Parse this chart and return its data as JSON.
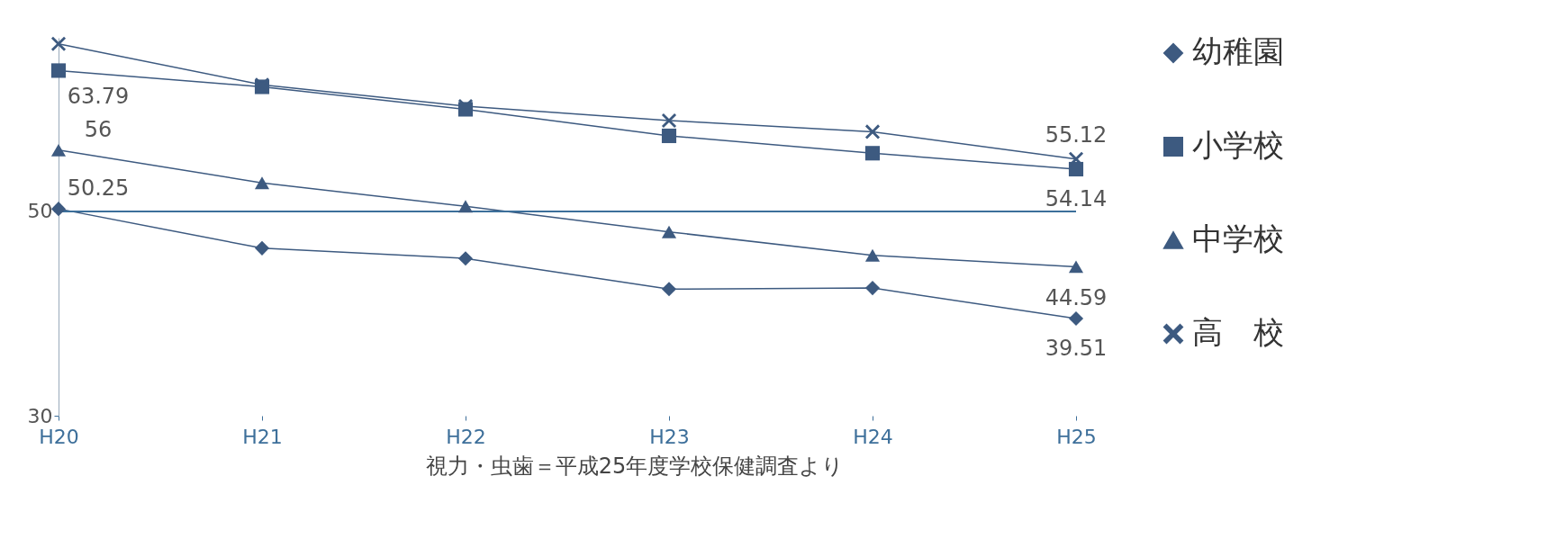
{
  "chart_data": {
    "type": "line",
    "categories": [
      "H20",
      "H21",
      "H22",
      "H23",
      "H24",
      "H25"
    ],
    "series": [
      {
        "name": "幼稚園",
        "color": "#3d5a80",
        "marker": "diamond",
        "values": [
          50.25,
          46.4,
          45.4,
          42.4,
          42.5,
          39.51
        ],
        "value_labels": [
          "50.25",
          null,
          null,
          null,
          null,
          "39.51"
        ]
      },
      {
        "name": "小学校",
        "color": "#3d5a80",
        "marker": "square",
        "values": [
          63.79,
          62.2,
          60.0,
          57.4,
          55.7,
          54.14
        ],
        "value_labels": [
          "63.79",
          null,
          null,
          null,
          null,
          "54.14"
        ]
      },
      {
        "name": "中学校",
        "color": "#3d5a80",
        "marker": "triangle",
        "values": [
          56,
          52.8,
          50.5,
          48,
          45.7,
          44.59
        ],
        "value_labels": [
          "56",
          null,
          null,
          null,
          null,
          "44.59"
        ]
      },
      {
        "name": "高　校",
        "color": "#3d5a80",
        "marker": "cross",
        "values": [
          66.4,
          62.4,
          60.3,
          58.9,
          57.8,
          55.12
        ],
        "value_labels": [
          null,
          null,
          null,
          null,
          null,
          "55.12"
        ]
      }
    ],
    "ylim": [
      30,
      67
    ],
    "yticks": [
      30,
      50
    ],
    "grid": false,
    "legend": "right",
    "ref_lines": [
      {
        "axis": "y",
        "value": 50,
        "color": "#3d6f9a"
      }
    ],
    "annotations": [
      "視力・虫歯＝平成25年度学校保健調査より"
    ]
  }
}
